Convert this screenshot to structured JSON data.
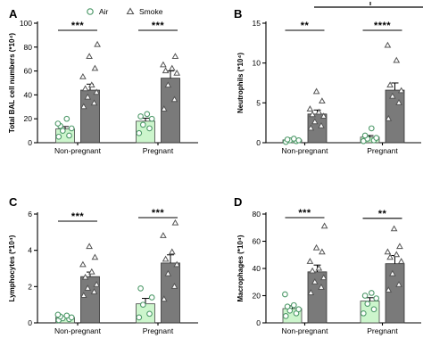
{
  "colors": {
    "air_fill": "#ccf5cc",
    "air_marker": "#4f9a6a",
    "smoke_fill": "#7a7a7a",
    "smoke_marker": "#555555"
  },
  "legend": [
    {
      "name": "Air",
      "marker": "circle"
    },
    {
      "name": "Smoke",
      "marker": "triangle"
    }
  ],
  "chart_data": [
    {
      "panel": "A",
      "type": "bar",
      "ylabel": "Total BAL cell numbers (*10⁴)",
      "ylim": [
        0,
        100
      ],
      "yticks": [
        "0",
        "20",
        "40",
        "60",
        "80",
        "100"
      ],
      "categories": [
        "Non-pregnant",
        "Pregnant"
      ],
      "series": [
        {
          "name": "Air",
          "means": [
            11.5,
            18
          ],
          "errors": [
            2,
            2.5
          ],
          "points": [
            [
              5,
              6,
              10,
              12,
              14,
              20,
              16
            ],
            [
              8,
              12,
              15,
              20,
              22,
              24
            ]
          ]
        },
        {
          "name": "Smoke",
          "means": [
            44,
            54
          ],
          "errors": [
            5,
            6
          ],
          "points": [
            [
              30,
              33,
              38,
              42,
              45,
              48,
              55,
              62,
              72,
              82
            ],
            [
              28,
              36,
              48,
              58,
              60,
              62,
              65,
              72
            ]
          ]
        }
      ],
      "significance": [
        "***",
        "***"
      ]
    },
    {
      "panel": "B",
      "type": "bar",
      "ylabel": "Neutrophils (*10⁴)",
      "ylim": [
        0,
        15
      ],
      "yticks": [
        "0",
        "5",
        "10",
        "15"
      ],
      "categories": [
        "Non-pregnant",
        "Pregnant"
      ],
      "series": [
        {
          "name": "Air",
          "means": [
            0.35,
            0.7
          ],
          "errors": [
            0.08,
            0.2
          ],
          "points": [
            [
              0.1,
              0.2,
              0.3,
              0.3,
              0.4,
              0.5
            ],
            [
              0.2,
              0.3,
              0.5,
              0.6,
              0.9,
              1.8
            ]
          ]
        },
        {
          "name": "Smoke",
          "means": [
            3.6,
            6.6
          ],
          "errors": [
            0.5,
            0.9
          ],
          "points": [
            [
              1.8,
              2.1,
              2.6,
              3.3,
              3.5,
              3.8,
              4.2,
              5.2,
              6.4
            ],
            [
              3.0,
              5.0,
              5.8,
              6.5,
              7.2,
              10.3,
              12.2
            ]
          ]
        }
      ],
      "significance": [
        "**",
        "****"
      ]
    },
    {
      "panel": "C",
      "type": "bar",
      "ylabel": "Lymphocytes (*10⁴)",
      "ylim": [
        0,
        6
      ],
      "yticks": [
        "0",
        "2",
        "4",
        "6"
      ],
      "categories": [
        "Non-pregnant",
        "Pregnant"
      ],
      "series": [
        {
          "name": "Air",
          "means": [
            0.3,
            1.05
          ],
          "errors": [
            0.06,
            0.3
          ],
          "points": [
            [
              0.15,
              0.2,
              0.25,
              0.3,
              0.35,
              0.4,
              0.45
            ],
            [
              0.3,
              0.5,
              1.0,
              1.4,
              1.9
            ]
          ]
        },
        {
          "name": "Smoke",
          "means": [
            2.55,
            3.3
          ],
          "errors": [
            0.25,
            0.45
          ],
          "points": [
            [
              1.5,
              1.7,
              1.9,
              2.1,
              2.5,
              2.8,
              3.2,
              3.6,
              4.2
            ],
            [
              1.3,
              2.0,
              2.7,
              3.2,
              3.5,
              3.9,
              4.8,
              5.5
            ]
          ]
        }
      ],
      "significance": [
        "***",
        "***"
      ]
    },
    {
      "panel": "D",
      "type": "bar",
      "ylabel": "Macrophages (*10⁴)",
      "ylim": [
        0,
        80
      ],
      "yticks": [
        "0",
        "20",
        "40",
        "60",
        "80"
      ],
      "categories": [
        "Non-pregnant",
        "Pregnant"
      ],
      "series": [
        {
          "name": "Air",
          "means": [
            10.5,
            16
          ],
          "errors": [
            2,
            2.5
          ],
          "points": [
            [
              5,
              7,
              9,
              10,
              12,
              13,
              21
            ],
            [
              7,
              10,
              14,
              18,
              20,
              22
            ]
          ]
        },
        {
          "name": "Smoke",
          "means": [
            37.5,
            43.5
          ],
          "errors": [
            5,
            6
          ],
          "points": [
            [
              22,
              26,
              30,
              33,
              38,
              40,
              45,
              52,
              55,
              71
            ],
            [
              24,
              28,
              36,
              45,
              48,
              50,
              52,
              56,
              69
            ]
          ]
        }
      ],
      "significance": [
        "***",
        "**"
      ]
    }
  ]
}
